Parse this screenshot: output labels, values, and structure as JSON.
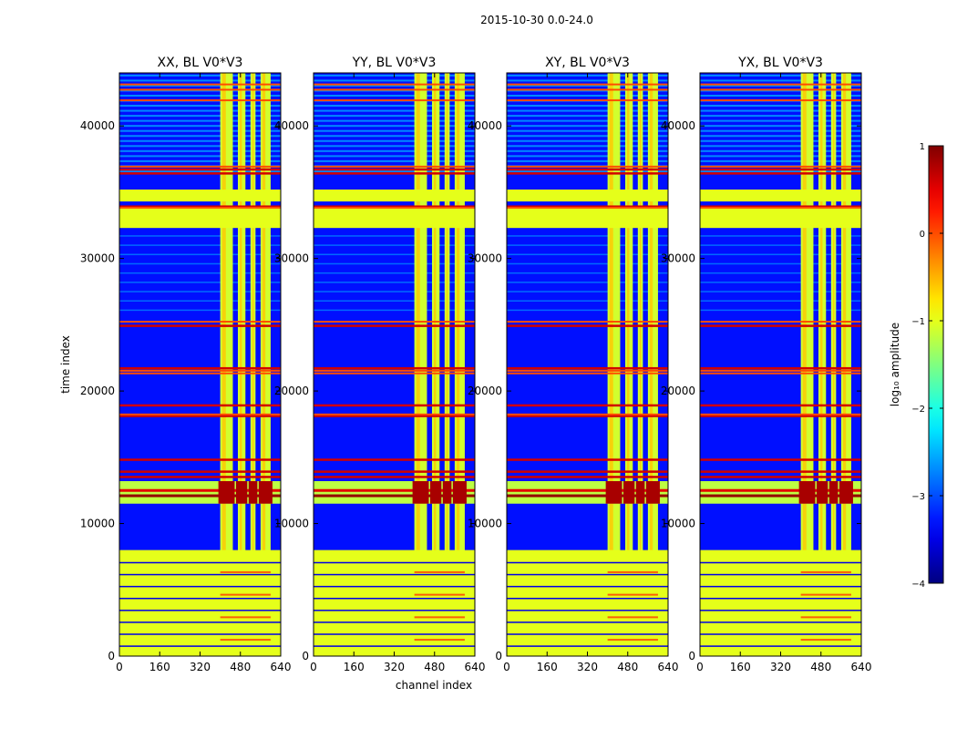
{
  "figure_title": "2015-10-30 0.0-24.0",
  "chart_data": {
    "type": "heatmap",
    "shared_axes": {
      "xlabel": "channel index",
      "ylabel": "time index",
      "xlim": [
        0,
        640
      ],
      "ylim": [
        0,
        44000
      ],
      "xticks": [
        0,
        160,
        320,
        480,
        640
      ],
      "yticks": [
        0,
        10000,
        20000,
        30000,
        40000
      ]
    },
    "colorbar": {
      "label": "log₁₀ amplitude",
      "range": [
        -4,
        1
      ],
      "ticks": [
        -4,
        -3,
        -2,
        -1,
        0,
        1
      ],
      "colormap": "jet"
    },
    "panels": [
      {
        "title": "XX, BL V0*V3"
      },
      {
        "title": "YY, BL V0*V3"
      },
      {
        "title": "XY, BL V0*V3"
      },
      {
        "title": "YX, BL V0*V3"
      }
    ],
    "features": {
      "low_time_band": {
        "t": [
          0,
          8000
        ],
        "value": -1.0
      },
      "wide_band_1": {
        "t": [
          32300,
          33800
        ],
        "value": -1.0
      },
      "wide_band_2": {
        "t": [
          34300,
          35200
        ],
        "value": -1.0
      },
      "hot_band": {
        "t": [
          11500,
          13200
        ],
        "value": 0.8
      },
      "rfi_channels": [
        [
          400,
          450
        ],
        [
          470,
          500
        ],
        [
          520,
          540
        ],
        [
          560,
          600
        ]
      ],
      "red_lines": [
        36500,
        36800,
        34000,
        25000,
        21800,
        19000,
        18200,
        14900,
        14000,
        13600
      ],
      "orange_lines": [
        43200,
        42800,
        42000,
        37000,
        33900,
        25300,
        21600,
        21400,
        18300
      ],
      "background_level": -3.3
    }
  },
  "colors": {
    "background": "#ffffff",
    "axis": "#000000"
  }
}
